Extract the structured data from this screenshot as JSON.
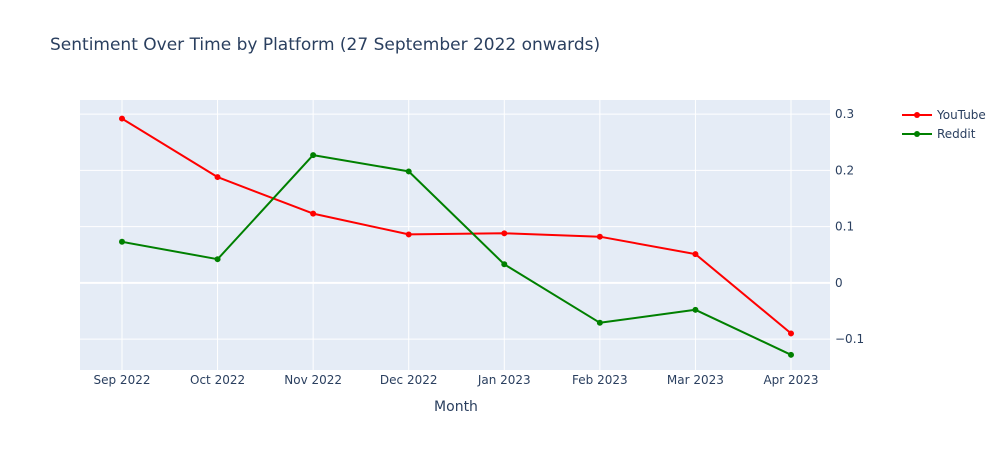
{
  "chart_data": {
    "type": "line",
    "title": "Sentiment Over Time by Platform (27 September 2022 onwards)",
    "xlabel": "Month",
    "ylabel": "",
    "categories": [
      "Sep 2022",
      "Oct 2022",
      "Nov 2022",
      "Dec 2022",
      "Jan 2023",
      "Feb 2023",
      "Mar 2023",
      "Apr 2023"
    ],
    "x": [
      "2022-09-27",
      "2022-10-27",
      "2022-11-27",
      "2022-12-27",
      "2023-01-27",
      "2023-02-27",
      "2023-03-27",
      "2023-04-27"
    ],
    "y_ticks": [
      0.3,
      0.2,
      0.1,
      0,
      -0.1
    ],
    "y_tick_labels": [
      "0.3",
      "0.2",
      "0.1",
      "0",
      "−0.1"
    ],
    "ylim": [
      -0.155,
      0.325
    ],
    "y_axis_side": "right",
    "grid": true,
    "legend_position": "top-right",
    "series": [
      {
        "name": "YouTube",
        "color": "#ff0000",
        "values": [
          0.292,
          0.188,
          0.123,
          0.086,
          0.088,
          0.082,
          0.051,
          -0.09
        ]
      },
      {
        "name": "Reddit",
        "color": "#008000",
        "values": [
          0.073,
          0.042,
          0.227,
          0.198,
          0.033,
          -0.071,
          -0.048,
          -0.128
        ]
      }
    ]
  }
}
